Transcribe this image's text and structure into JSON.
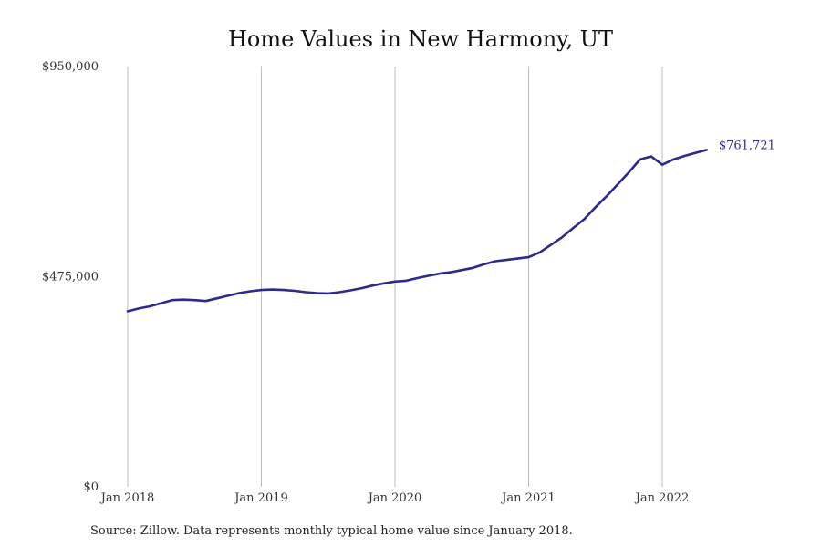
{
  "colors": {
    "line": "#2e2a8c",
    "grid": "#bdbdbd",
    "background": "#ffffff"
  },
  "chart_data": {
    "type": "line",
    "title": "Home Values in New Harmony, UT",
    "xlabel": "",
    "ylabel": "",
    "ylim": [
      0,
      950000
    ],
    "y_tick_labels": [
      "$950,000",
      "$475,000",
      "$0"
    ],
    "y_ticks": [
      950000,
      475000,
      0
    ],
    "x_ticks": [
      {
        "date": "2018-01",
        "label": "Jan 2018"
      },
      {
        "date": "2019-01",
        "label": "Jan 2019"
      },
      {
        "date": "2020-01",
        "label": "Jan 2020"
      },
      {
        "date": "2021-01",
        "label": "Jan 2021"
      },
      {
        "date": "2022-01",
        "label": "Jan 2022"
      }
    ],
    "grid": "vertical",
    "series": [
      {
        "end_label": "$761,721",
        "x": [
          "2018-01",
          "2018-02",
          "2018-03",
          "2018-04",
          "2018-05",
          "2018-06",
          "2018-07",
          "2018-08",
          "2018-09",
          "2018-10",
          "2018-11",
          "2018-12",
          "2019-01",
          "2019-02",
          "2019-03",
          "2019-04",
          "2019-05",
          "2019-06",
          "2019-07",
          "2019-08",
          "2019-09",
          "2019-10",
          "2019-11",
          "2019-12",
          "2020-01",
          "2020-02",
          "2020-03",
          "2020-04",
          "2020-05",
          "2020-06",
          "2020-07",
          "2020-08",
          "2020-09",
          "2020-10",
          "2020-11",
          "2020-12",
          "2021-01",
          "2021-02",
          "2021-03",
          "2021-04",
          "2021-05",
          "2021-06",
          "2021-07",
          "2021-08",
          "2021-09",
          "2021-10",
          "2021-11",
          "2021-12",
          "2022-01",
          "2022-02",
          "2022-03",
          "2022-04",
          "2022-05",
          "2022-06"
        ],
        "y": [
          397000,
          403000,
          408000,
          415000,
          422000,
          423000,
          422000,
          420000,
          426000,
          432000,
          438000,
          442000,
          445000,
          446000,
          445000,
          443000,
          440000,
          438000,
          437000,
          440000,
          444000,
          449000,
          455000,
          460000,
          464000,
          466000,
          472000,
          477000,
          482000,
          485000,
          490000,
          495000,
          503000,
          510000,
          513000,
          516000,
          519000,
          530000,
          547000,
          564000,
          585000,
          605000,
          632000,
          657000,
          684000,
          711000,
          740000,
          747000,
          728000,
          740000,
          748000,
          755000,
          761721,
          761721
        ]
      }
    ]
  },
  "source_note": "Source: Zillow. Data represents monthly typical home value since January 2018."
}
